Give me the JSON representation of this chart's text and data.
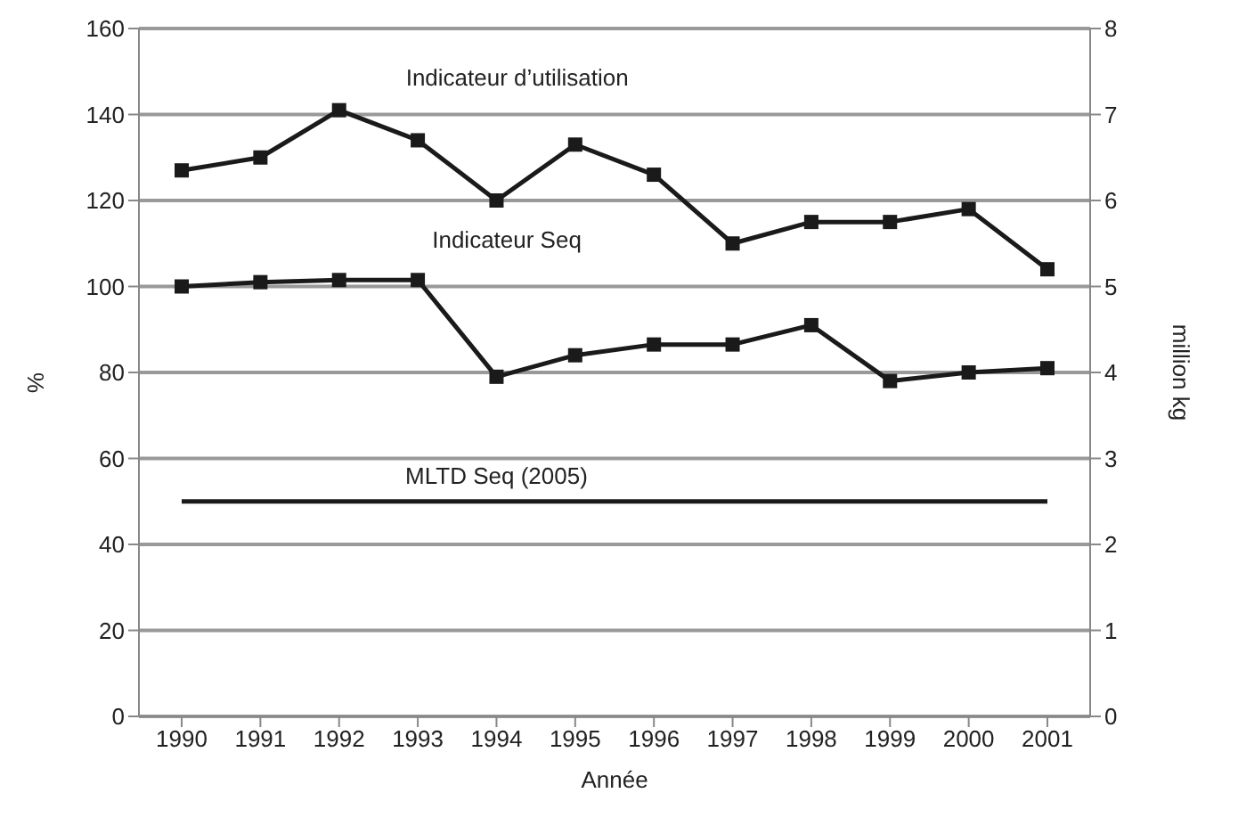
{
  "chart_data": {
    "type": "line",
    "xlabel": "Année",
    "ylabel": "%",
    "y2label": "million kg",
    "categories": [
      "1990",
      "1991",
      "1992",
      "1993",
      "1994",
      "1995",
      "1996",
      "1997",
      "1998",
      "1999",
      "2000",
      "2001"
    ],
    "series": [
      {
        "name": "Indicateur d’utilisation",
        "color": "#1a1a1a",
        "marker": "square",
        "values": [
          127,
          130,
          141,
          134,
          120,
          133,
          126,
          110,
          115,
          115,
          118,
          104
        ]
      },
      {
        "name": "Indicateur Seq",
        "color": "#1a1a1a",
        "marker": "square",
        "values": [
          100,
          101,
          101.5,
          101.5,
          79,
          84,
          86.5,
          86.5,
          91,
          78,
          80,
          81
        ]
      },
      {
        "name": "MLTD Seq (2005)",
        "color": "#1a1a1a",
        "marker": "none",
        "values": [
          50,
          50,
          50,
          50,
          50,
          50,
          50,
          50,
          50,
          50,
          50,
          50
        ]
      }
    ],
    "ylim": [
      0,
      160
    ],
    "yticks": [
      0,
      20,
      40,
      60,
      80,
      100,
      120,
      140,
      160
    ],
    "y2lim": [
      0,
      8
    ],
    "y2ticks": [
      0,
      1,
      2,
      3,
      4,
      5,
      6,
      7,
      8
    ],
    "grid": "y",
    "legend": false,
    "line_style": "solid"
  }
}
